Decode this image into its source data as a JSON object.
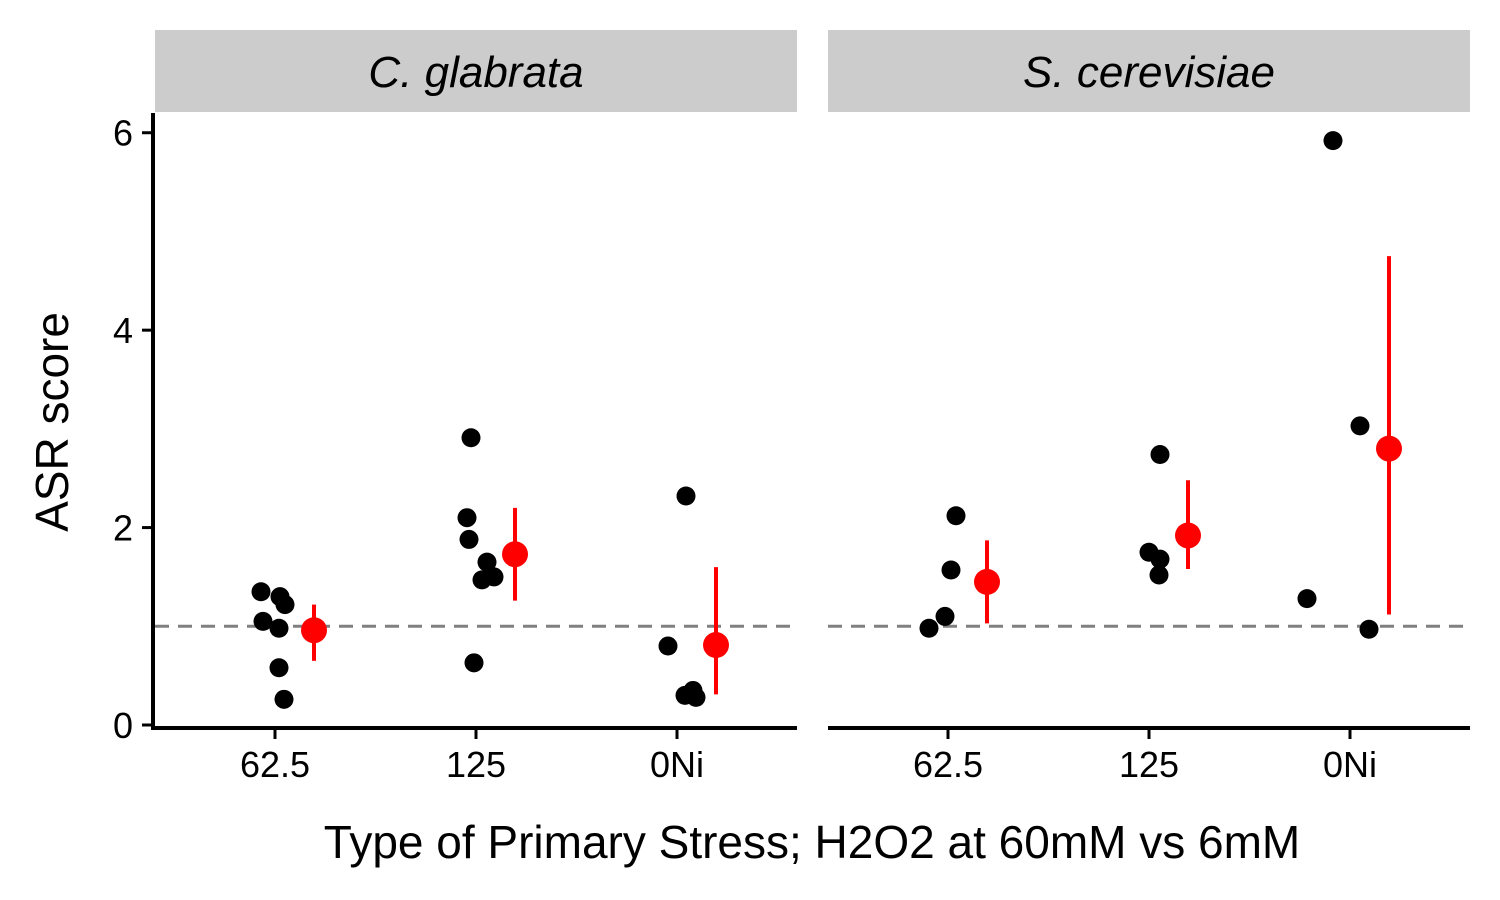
{
  "chart_data": {
    "type": "scatter",
    "xlabel": "Type of Primary Stress; H2O2 at 60mM vs 6mM",
    "ylabel": "ASR score",
    "categories": [
      "62.5",
      "125",
      "0Ni"
    ],
    "ylim": [
      0,
      6.2
    ],
    "yticks": [
      0,
      2,
      4,
      6
    ],
    "reference_line": 1,
    "colors": {
      "points": "#000000",
      "summary": "#ff0000",
      "reference_line": "#808080",
      "strip_background": "#cccccc"
    },
    "panels": [
      {
        "label": "C. glabrata",
        "points": {
          "62.5": [
            1.35,
            1.3,
            1.22,
            1.05,
            0.98,
            0.58,
            0.26
          ],
          "125": [
            2.91,
            2.1,
            1.88,
            1.65,
            1.5,
            1.47,
            0.63
          ],
          "0Ni": [
            2.32,
            0.8,
            0.35,
            0.3,
            0.28
          ]
        },
        "summary": {
          "62.5": {
            "mean": 0.96,
            "lower": 0.65,
            "upper": 1.22
          },
          "125": {
            "mean": 1.73,
            "lower": 1.26,
            "upper": 2.2
          },
          "0Ni": {
            "mean": 0.81,
            "lower": 0.31,
            "upper": 1.6
          }
        }
      },
      {
        "label": "S. cerevisiae",
        "points": {
          "62.5": [
            2.12,
            1.57,
            1.1,
            0.98
          ],
          "125": [
            2.74,
            1.75,
            1.68,
            1.52
          ],
          "0Ni": [
            5.92,
            3.03,
            1.28,
            0.97
          ]
        },
        "summary": {
          "62.5": {
            "mean": 1.45,
            "lower": 1.03,
            "upper": 1.87
          },
          "125": {
            "mean": 1.92,
            "lower": 1.58,
            "upper": 2.48
          },
          "0Ni": {
            "mean": 2.8,
            "lower": 1.12,
            "upper": 4.75
          }
        }
      }
    ]
  }
}
